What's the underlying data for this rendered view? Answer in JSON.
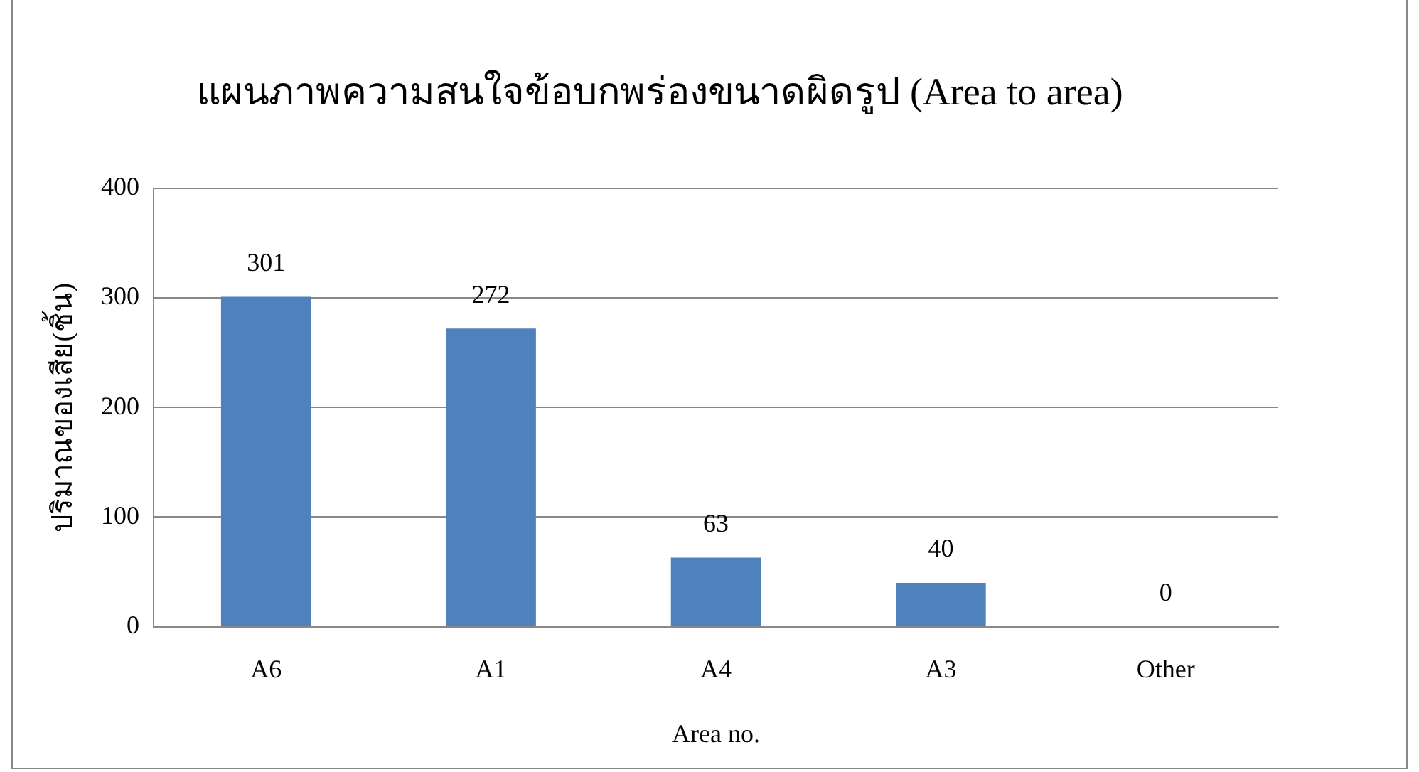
{
  "chart_data": {
    "type": "bar",
    "title": "แผนภาพความสนใจข้อบกพร่องขนาดผิดรูป (Area to area)",
    "xlabel": "Area no.",
    "ylabel": "ปริมาณของเสีย(ชิ้น)",
    "categories": [
      "A6",
      "A1",
      "A4",
      "A3",
      "Other"
    ],
    "values": [
      301,
      272,
      63,
      40,
      0
    ],
    "color": "#4f81bd",
    "ylim": [
      0,
      400
    ],
    "yticks": [
      0,
      100,
      200,
      300,
      400
    ],
    "grid": "y",
    "data_labels": true,
    "legend": false
  }
}
